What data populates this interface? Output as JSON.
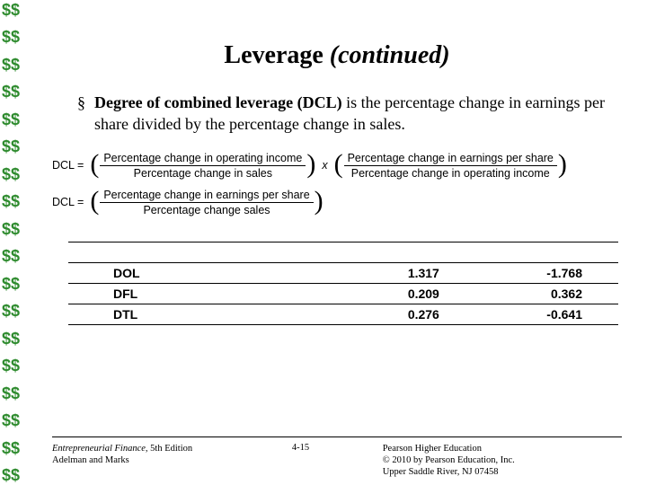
{
  "sidebar": {
    "glyph": "$$",
    "count": 18,
    "color": "#2e8b2e"
  },
  "title": {
    "main": "Leverage",
    "continued": "(continued)"
  },
  "bullet": {
    "marker": "§",
    "term": "Degree of combined leverage (DCL)",
    "rest": " is the percentage change in earnings per share divided by the percentage change in sales."
  },
  "formulas": {
    "f1": {
      "lhs": "DCL =",
      "frac1": {
        "num": "Percentage change in operating income",
        "den": "Percentage change in sales"
      },
      "mult": "x",
      "frac2": {
        "num": "Percentage change in earnings per share",
        "den": "Percentage change in operating income"
      }
    },
    "f2": {
      "lhs": "DCL =",
      "frac": {
        "num": "Percentage change in earnings per share",
        "den": "Percentage change sales"
      }
    }
  },
  "table": {
    "rows": [
      {
        "label": "DOL",
        "v1": "1.317",
        "v2": "-1.768"
      },
      {
        "label": "DFL",
        "v1": "0.209",
        "v2": "0.362"
      },
      {
        "label": "DTL",
        "v1": "0.276",
        "v2": "-0.641"
      }
    ]
  },
  "footer": {
    "book": "Entrepreneurial Finance,",
    "edition": " 5th Edition",
    "authors": "Adelman and Marks",
    "pagenum": "4-15",
    "pub1": "Pearson Higher Education",
    "pub2": "© 2010 by Pearson Education, Inc.",
    "pub3": "Upper Saddle River, NJ 07458"
  }
}
